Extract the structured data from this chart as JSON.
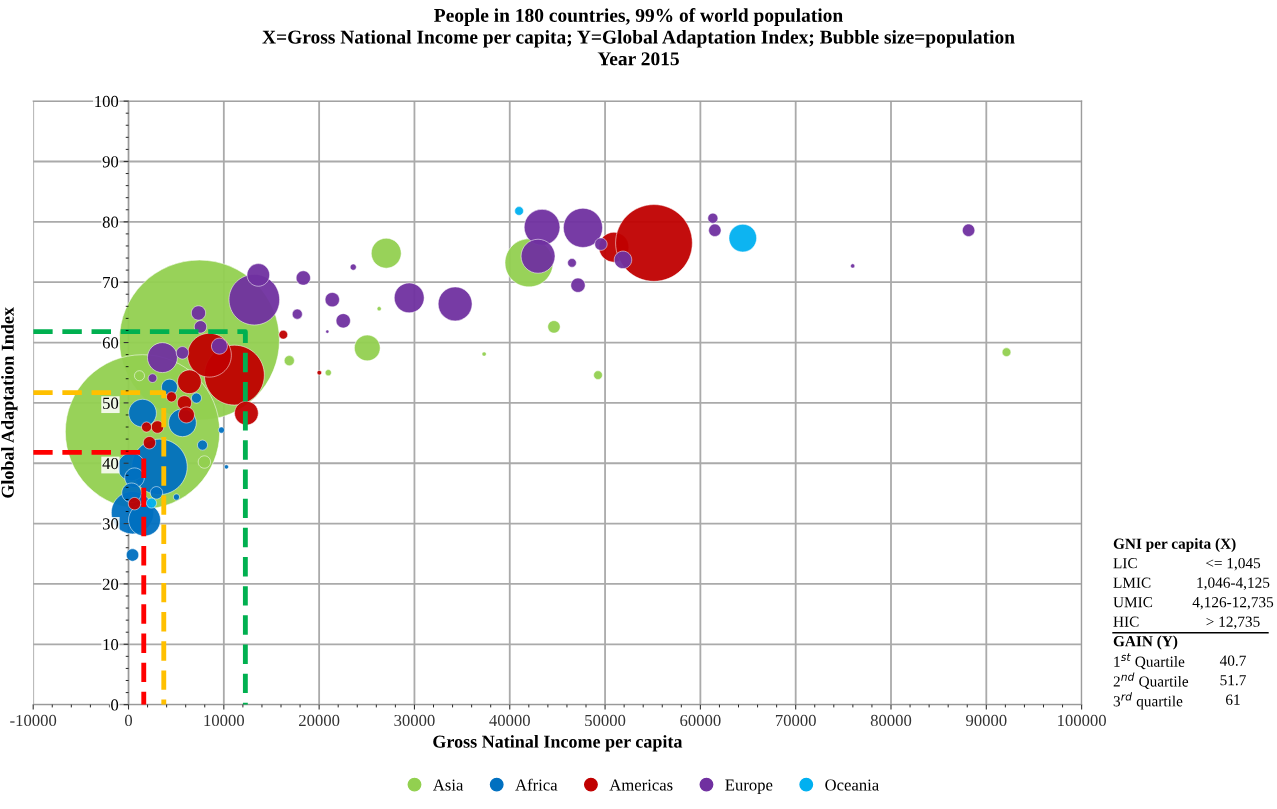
{
  "chart_data": {
    "type": "bubble",
    "title": "People in 180 countries, 99% of world population\nX=Gross National Income per capita; Y=Global Adaptation Index; Bubble size=population\nYear 2015",
    "xlabel": "Gross Natinal Income per capita",
    "ylabel": "Global Adaptation Index",
    "xlim": [
      -10000,
      100000
    ],
    "xticks": [
      -10000,
      0,
      10000,
      20000,
      30000,
      40000,
      50000,
      60000,
      70000,
      80000,
      90000,
      100000
    ],
    "ylim": [
      0,
      100
    ],
    "yticks": [
      0,
      10,
      20,
      30,
      40,
      50,
      60,
      70,
      80,
      90,
      100
    ],
    "grid": true,
    "legend": "bottom",
    "marker": "circle",
    "series": [
      {
        "name": "Asia",
        "color": "#92d050",
        "x": [
          7440,
          1470,
          42020,
          27040,
          25050,
          44640,
          49260,
          92120,
          16870,
          20960,
          37310,
          26300,
          7960,
          1150
        ],
        "values": [
          60.4,
          45.2,
          73.2,
          74.8,
          59.1,
          62.6,
          54.6,
          58.4,
          57.0,
          55.0,
          58.1,
          65.6,
          40.2,
          54.5
        ],
        "sizes": [
          1,
          0.93,
          0.09,
          0.035,
          0.026,
          0.006,
          0.003,
          0.003,
          0.004,
          0.0015,
          0.0007,
          0.0007,
          0.006,
          0.004
        ]
      },
      {
        "name": "Africa",
        "color": "#0070c0",
        "x": [
          3250,
          420,
          1680,
          420,
          310,
          630,
          320,
          1470,
          4300,
          5660,
          7760,
          9750,
          10270,
          2930,
          5030,
          7130
        ],
        "values": [
          39.4,
          31.8,
          30.6,
          24.8,
          39.4,
          37.6,
          35.1,
          48.3,
          52.6,
          46.7,
          43.0,
          45.5,
          39.4,
          35.1,
          34.4,
          50.8
        ],
        "sizes": [
          0.12,
          0.07,
          0.04,
          0.006,
          0.03,
          0.015,
          0.015,
          0.03,
          0.01,
          0.03,
          0.004,
          0.0015,
          0.0007,
          0.006,
          0.0015,
          0.004
        ]
      },
      {
        "name": "Americas",
        "color": "#c00000",
        "x": [
          50930,
          55130,
          11110,
          8490,
          12370,
          6390,
          5870,
          6080,
          3040,
          1890,
          2200,
          630,
          4510,
          16240,
          20020
        ],
        "values": [
          75.8,
          76.5,
          54.6,
          57.9,
          48.3,
          53.5,
          50.0,
          48.0,
          46.0,
          46.0,
          43.4,
          33.3,
          51.0,
          61.3,
          55.0
        ],
        "sizes": [
          0.035,
          0.23,
          0.14,
          0.075,
          0.022,
          0.022,
          0.008,
          0.01,
          0.006,
          0.004,
          0.006,
          0.006,
          0.004,
          0.003,
          0.0008
        ]
      },
      {
        "name": "Europe",
        "color": "#7030a0",
        "x": [
          13200,
          13620,
          47680,
          43390,
          42970,
          29450,
          34270,
          3560,
          9540,
          18340,
          21380,
          22530,
          17710,
          23580,
          46530,
          47160,
          49570,
          51880,
          61310,
          61520,
          88140,
          75980,
          7340,
          5660,
          2520,
          7550,
          20860
        ],
        "values": [
          67.1,
          71.2,
          79.0,
          79.1,
          74.3,
          67.4,
          66.4,
          57.5,
          59.4,
          70.7,
          67.1,
          63.6,
          64.7,
          72.5,
          73.2,
          69.5,
          76.3,
          73.7,
          80.6,
          78.6,
          78.6,
          72.7,
          64.9,
          58.3,
          54.1,
          62.6,
          61.8
        ],
        "sizes": [
          0.1,
          0.02,
          0.06,
          0.05,
          0.045,
          0.035,
          0.045,
          0.035,
          0.01,
          0.008,
          0.008,
          0.008,
          0.004,
          0.0015,
          0.003,
          0.008,
          0.006,
          0.012,
          0.004,
          0.006,
          0.006,
          0.0007,
          0.008,
          0.006,
          0.003,
          0.006,
          0.0004
        ]
      },
      {
        "name": "Oceania",
        "color": "#00b0f0",
        "x": [
          64450,
          40980,
          2410
        ],
        "values": [
          77.3,
          81.8,
          33.4
        ],
        "sizes": [
          0.03,
          0.003,
          0.004
        ]
      },
      {
        "type": "line",
        "color": "#ff0000",
        "line_style": "dashed",
        "marker": "none",
        "x": [
          -10000,
          1600,
          1600
        ],
        "values": [
          41.8,
          41.8,
          0
        ]
      },
      {
        "type": "line",
        "color": "#ffc000",
        "line_style": "dashed",
        "marker": "none",
        "x": [
          -10000,
          3700,
          3700
        ],
        "values": [
          51.7,
          51.7,
          0
        ]
      },
      {
        "type": "line",
        "color": "#00b050",
        "line_style": "dashed",
        "marker": "none",
        "x": [
          -10000,
          12260,
          12260
        ],
        "values": [
          61.8,
          61.8,
          0
        ]
      }
    ],
    "annotations": [
      "GNI per capita (X)",
      "LIC",
      "<= 1,045",
      "LMIC",
      "1,046-4,125",
      "UMIC",
      "4,126-12,735",
      "HIC",
      "> 12,735",
      "GAIN (Y)",
      "1$^{st}$ Quartile",
      "40.7",
      "2$^{nd}$ Quartile",
      "51.7",
      "3$^{rd}$ quartile",
      "61"
    ]
  }
}
